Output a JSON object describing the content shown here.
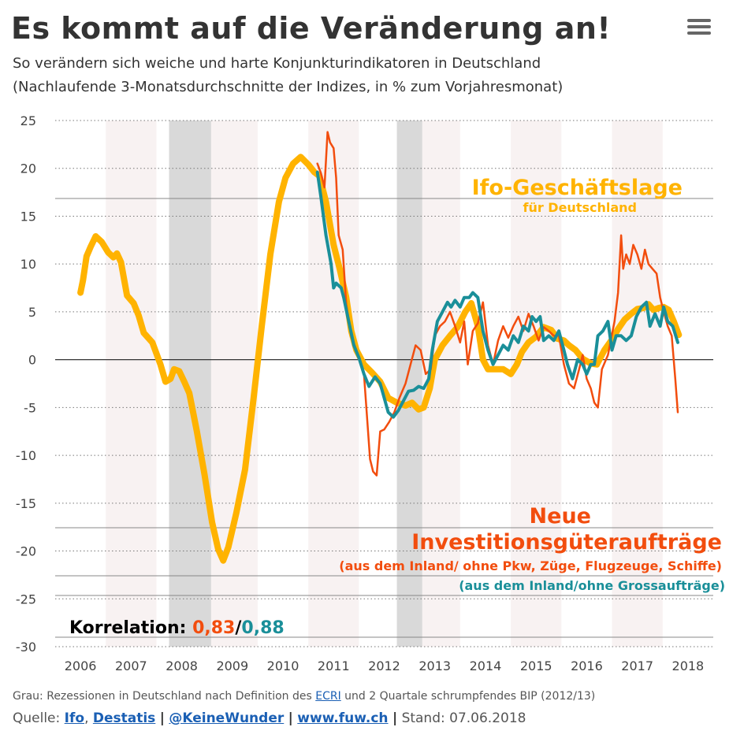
{
  "header": {
    "title": "Es kommt auf die Veränderung an!",
    "subtitle1": "So verändern sich weiche und harte Konjunkturindikatoren in Deutschland",
    "subtitle2": "(Nachlaufende 3-Monatsdurchschnitte der Indizes, in % zum Vorjahresmonat)",
    "menu_icon": "hamburger-menu-icon"
  },
  "colors": {
    "ifo": "#FFB300",
    "orders_red": "#F24D0E",
    "orders_teal": "#1A8F99",
    "recession": "#D9D9D9",
    "year_band": "#F8F2F2"
  },
  "chart_data": {
    "type": "line",
    "title": "Es kommt auf die Veränderung an!",
    "ylim": [
      -30,
      25
    ],
    "yticks": [
      25,
      20,
      15,
      10,
      5,
      0,
      -5,
      -10,
      -15,
      -20,
      -25,
      -30
    ],
    "xlim": [
      2005.5,
      2018.5
    ],
    "xticks": [
      "2006",
      "2007",
      "2008",
      "2009",
      "2010",
      "2011",
      "2012",
      "2013",
      "2014",
      "2015",
      "2016",
      "2017",
      "2018"
    ],
    "recessions": [
      [
        2007.75,
        2008.58
      ],
      [
        2012.25,
        2012.75
      ]
    ],
    "labels": {
      "ifo_title": "Ifo-Geschäftslage",
      "ifo_sub": "für Deutschland",
      "orders_title1": "Neue",
      "orders_title2": "Investitionsgüteraufträge",
      "orders_sub_red": "(aus dem Inland/ ohne Pkw, Züge, Flugzeuge, Schiffe)",
      "orders_sub_teal": "(aus dem Inland/ohne Grossaufträge)",
      "corr_label": "Korrelation: ",
      "corr_red": "0,83",
      "corr_sep": "/",
      "corr_teal": "0,88"
    },
    "series": [
      {
        "name": "Ifo-Geschäftslage für Deutschland",
        "color": "#FFB300",
        "points": [
          [
            2006.0,
            7
          ],
          [
            2006.05,
            8.3
          ],
          [
            2006.12,
            10.8
          ],
          [
            2006.2,
            11.8
          ],
          [
            2006.3,
            12.9
          ],
          [
            2006.42,
            12.3
          ],
          [
            2006.55,
            11.2
          ],
          [
            2006.65,
            10.7
          ],
          [
            2006.72,
            11.1
          ],
          [
            2006.8,
            10.2
          ],
          [
            2006.92,
            6.7
          ],
          [
            2007.05,
            5.9
          ],
          [
            2007.15,
            4.6
          ],
          [
            2007.25,
            2.8
          ],
          [
            2007.42,
            1.8
          ],
          [
            2007.58,
            -0.5
          ],
          [
            2007.68,
            -2.3
          ],
          [
            2007.78,
            -2.0
          ],
          [
            2007.85,
            -1.0
          ],
          [
            2007.95,
            -1.2
          ],
          [
            2008.05,
            -2.3
          ],
          [
            2008.15,
            -3.5
          ],
          [
            2008.3,
            -7.5
          ],
          [
            2008.45,
            -12
          ],
          [
            2008.6,
            -17
          ],
          [
            2008.72,
            -19.8
          ],
          [
            2008.82,
            -21
          ],
          [
            2008.92,
            -19.6
          ],
          [
            2009.08,
            -16
          ],
          [
            2009.25,
            -11.5
          ],
          [
            2009.42,
            -4
          ],
          [
            2009.58,
            3.5
          ],
          [
            2009.75,
            11
          ],
          [
            2009.92,
            16.5
          ],
          [
            2010.05,
            19
          ],
          [
            2010.2,
            20.5
          ],
          [
            2010.35,
            21.2
          ],
          [
            2010.5,
            20.4
          ],
          [
            2010.62,
            19.6
          ],
          [
            2010.72,
            19.2
          ],
          [
            2010.85,
            16.5
          ],
          [
            2011.0,
            12
          ],
          [
            2011.12,
            9.5
          ],
          [
            2011.25,
            6.5
          ],
          [
            2011.35,
            3
          ],
          [
            2011.45,
            1.0
          ],
          [
            2011.6,
            -0.5
          ],
          [
            2011.75,
            -1.3
          ],
          [
            2011.92,
            -2.3
          ],
          [
            2012.08,
            -4.0
          ],
          [
            2012.25,
            -4.5
          ],
          [
            2012.42,
            -4.8
          ],
          [
            2012.55,
            -4.5
          ],
          [
            2012.68,
            -5.2
          ],
          [
            2012.78,
            -5.0
          ],
          [
            2012.9,
            -3.0
          ],
          [
            2013.0,
            0
          ],
          [
            2013.15,
            1.5
          ],
          [
            2013.3,
            2.5
          ],
          [
            2013.45,
            3.4
          ],
          [
            2013.6,
            5.0
          ],
          [
            2013.72,
            5.9
          ],
          [
            2013.85,
            3.5
          ],
          [
            2013.95,
            0
          ],
          [
            2014.05,
            -1
          ],
          [
            2014.2,
            -1.0
          ],
          [
            2014.35,
            -1.0
          ],
          [
            2014.5,
            -1.5
          ],
          [
            2014.62,
            -0.5
          ],
          [
            2014.72,
            0.8
          ],
          [
            2014.85,
            1.8
          ],
          [
            2015.0,
            2.4
          ],
          [
            2015.15,
            3.4
          ],
          [
            2015.3,
            3.1
          ],
          [
            2015.42,
            2.2
          ],
          [
            2015.55,
            2.0
          ],
          [
            2015.65,
            1.5
          ],
          [
            2015.78,
            1.0
          ],
          [
            2015.92,
            0.1
          ],
          [
            2016.08,
            -0.4
          ],
          [
            2016.2,
            -0.5
          ],
          [
            2016.35,
            1.0
          ],
          [
            2016.5,
            2.1
          ],
          [
            2016.62,
            3.2
          ],
          [
            2016.75,
            4.2
          ],
          [
            2016.88,
            4.8
          ],
          [
            2017.0,
            5.3
          ],
          [
            2017.12,
            5.4
          ],
          [
            2017.22,
            5.8
          ],
          [
            2017.32,
            5.2
          ],
          [
            2017.42,
            5.4
          ],
          [
            2017.52,
            5.5
          ],
          [
            2017.62,
            5.2
          ],
          [
            2017.72,
            4.0
          ],
          [
            2017.82,
            2.6
          ]
        ]
      },
      {
        "name": "Neue Investitionsgüteraufträge (aus dem Inland/ ohne Pkw, Züge, Flugzeuge, Schiffe)",
        "color": "#F24D0E",
        "points": [
          [
            2010.68,
            20.5
          ],
          [
            2010.75,
            19.5
          ],
          [
            2010.82,
            18.0
          ],
          [
            2010.88,
            23.8
          ],
          [
            2010.93,
            22.7
          ],
          [
            2011.0,
            22.1
          ],
          [
            2011.05,
            19.0
          ],
          [
            2011.1,
            13.0
          ],
          [
            2011.18,
            11.5
          ],
          [
            2011.25,
            5.8
          ],
          [
            2011.35,
            2.4
          ],
          [
            2011.45,
            1.0
          ],
          [
            2011.6,
            -1.5
          ],
          [
            2011.72,
            -10.4
          ],
          [
            2011.78,
            -11.7
          ],
          [
            2011.85,
            -12.1
          ],
          [
            2011.92,
            -7.5
          ],
          [
            2012.0,
            -7.3
          ],
          [
            2012.1,
            -6.5
          ],
          [
            2012.2,
            -5.5
          ],
          [
            2012.3,
            -4.0
          ],
          [
            2012.42,
            -2.5
          ],
          [
            2012.52,
            -0.5
          ],
          [
            2012.62,
            1.5
          ],
          [
            2012.72,
            1.0
          ],
          [
            2012.82,
            -1.5
          ],
          [
            2012.92,
            -1.0
          ],
          [
            2013.0,
            2.5
          ],
          [
            2013.1,
            3.5
          ],
          [
            2013.2,
            4.0
          ],
          [
            2013.3,
            5.0
          ],
          [
            2013.4,
            3.5
          ],
          [
            2013.5,
            1.8
          ],
          [
            2013.58,
            4.0
          ],
          [
            2013.65,
            -0.5
          ],
          [
            2013.75,
            3.0
          ],
          [
            2013.85,
            3.8
          ],
          [
            2013.95,
            6.0
          ],
          [
            2014.05,
            1.5
          ],
          [
            2014.15,
            -0.5
          ],
          [
            2014.25,
            2.0
          ],
          [
            2014.35,
            3.5
          ],
          [
            2014.45,
            2.3
          ],
          [
            2014.55,
            3.5
          ],
          [
            2014.65,
            4.5
          ],
          [
            2014.75,
            3.0
          ],
          [
            2014.85,
            4.8
          ],
          [
            2014.95,
            3.5
          ],
          [
            2015.05,
            2.0
          ],
          [
            2015.15,
            3.4
          ],
          [
            2015.25,
            3.0
          ],
          [
            2015.35,
            2.5
          ],
          [
            2015.45,
            2.5
          ],
          [
            2015.55,
            -0.5
          ],
          [
            2015.65,
            -2.5
          ],
          [
            2015.75,
            -3.0
          ],
          [
            2015.85,
            -1.0
          ],
          [
            2015.92,
            0.5
          ],
          [
            2016.0,
            -2.0
          ],
          [
            2016.08,
            -3.0
          ],
          [
            2016.15,
            -4.5
          ],
          [
            2016.22,
            -5.0
          ],
          [
            2016.3,
            -1.0
          ],
          [
            2016.42,
            0.5
          ],
          [
            2016.55,
            4.0
          ],
          [
            2016.62,
            7.0
          ],
          [
            2016.68,
            13.0
          ],
          [
            2016.72,
            9.5
          ],
          [
            2016.78,
            11.0
          ],
          [
            2016.85,
            10.0
          ],
          [
            2016.92,
            12.0
          ],
          [
            2017.0,
            11.0
          ],
          [
            2017.08,
            9.5
          ],
          [
            2017.15,
            11.5
          ],
          [
            2017.22,
            10.0
          ],
          [
            2017.3,
            9.5
          ],
          [
            2017.38,
            9.0
          ],
          [
            2017.45,
            6.5
          ],
          [
            2017.52,
            5.0
          ],
          [
            2017.6,
            3.5
          ],
          [
            2017.68,
            2.5
          ],
          [
            2017.75,
            -2.0
          ],
          [
            2017.8,
            -5.5
          ]
        ]
      },
      {
        "name": "Neue Investitionsgüteraufträge (aus dem Inland/ohne Grossaufträge)",
        "color": "#1A8F99",
        "points": [
          [
            2010.68,
            19.6
          ],
          [
            2010.75,
            17.0
          ],
          [
            2010.85,
            13.0
          ],
          [
            2010.95,
            10.0
          ],
          [
            2011.0,
            7.5
          ],
          [
            2011.05,
            8.0
          ],
          [
            2011.15,
            7.5
          ],
          [
            2011.2,
            6.5
          ],
          [
            2011.3,
            4.0
          ],
          [
            2011.4,
            1.5
          ],
          [
            2011.5,
            0.2
          ],
          [
            2011.6,
            -1.5
          ],
          [
            2011.7,
            -2.8
          ],
          [
            2011.82,
            -1.8
          ],
          [
            2011.92,
            -2.5
          ],
          [
            2012.0,
            -4.0
          ],
          [
            2012.08,
            -5.5
          ],
          [
            2012.18,
            -6.0
          ],
          [
            2012.28,
            -5.3
          ],
          [
            2012.38,
            -4.3
          ],
          [
            2012.48,
            -3.3
          ],
          [
            2012.58,
            -3.2
          ],
          [
            2012.68,
            -2.8
          ],
          [
            2012.78,
            -3.0
          ],
          [
            2012.88,
            -2.0
          ],
          [
            2012.95,
            1.0
          ],
          [
            2013.05,
            4.0
          ],
          [
            2013.15,
            5.0
          ],
          [
            2013.25,
            6.0
          ],
          [
            2013.32,
            5.5
          ],
          [
            2013.4,
            6.2
          ],
          [
            2013.5,
            5.5
          ],
          [
            2013.58,
            6.5
          ],
          [
            2013.68,
            6.5
          ],
          [
            2013.75,
            7.0
          ],
          [
            2013.85,
            6.5
          ],
          [
            2013.95,
            3.0
          ],
          [
            2014.05,
            1.0
          ],
          [
            2014.15,
            -0.5
          ],
          [
            2014.25,
            0.5
          ],
          [
            2014.35,
            1.5
          ],
          [
            2014.45,
            1.0
          ],
          [
            2014.55,
            2.5
          ],
          [
            2014.65,
            1.8
          ],
          [
            2014.75,
            3.5
          ],
          [
            2014.85,
            3.0
          ],
          [
            2014.92,
            4.5
          ],
          [
            2015.0,
            4.0
          ],
          [
            2015.08,
            4.5
          ],
          [
            2015.15,
            2.0
          ],
          [
            2015.25,
            2.5
          ],
          [
            2015.35,
            2.0
          ],
          [
            2015.45,
            3.0
          ],
          [
            2015.55,
            1.0
          ],
          [
            2015.62,
            -0.5
          ],
          [
            2015.72,
            -2.0
          ],
          [
            2015.82,
            0
          ],
          [
            2015.92,
            -0.5
          ],
          [
            2016.0,
            -1.5
          ],
          [
            2016.08,
            -0.5
          ],
          [
            2016.15,
            -0.5
          ],
          [
            2016.22,
            2.5
          ],
          [
            2016.32,
            3.0
          ],
          [
            2016.42,
            4.0
          ],
          [
            2016.5,
            1.0
          ],
          [
            2016.58,
            2.5
          ],
          [
            2016.68,
            2.5
          ],
          [
            2016.78,
            2.0
          ],
          [
            2016.88,
            2.5
          ],
          [
            2016.98,
            4.5
          ],
          [
            2017.08,
            5.5
          ],
          [
            2017.18,
            6.0
          ],
          [
            2017.25,
            3.5
          ],
          [
            2017.35,
            4.8
          ],
          [
            2017.45,
            3.5
          ],
          [
            2017.52,
            5.5
          ],
          [
            2017.6,
            4.0
          ],
          [
            2017.7,
            3.5
          ],
          [
            2017.8,
            1.8
          ]
        ]
      }
    ]
  },
  "footer": {
    "note_pre": "Grau: Rezessionen in Deutschland nach Definition des ",
    "note_link": "ECRI",
    "note_post": " und 2 Quartale schrumpfendes BIP (2012/13)",
    "source_label": "Quelle: ",
    "src_ifo": "Ifo",
    "src_comma": ", ",
    "src_destatis": "Destatis",
    "separator": "|",
    "src_twitter": "@KeineWunder",
    "src_fuw": "www.fuw.ch",
    "stand": "Stand: 07.06.2018"
  }
}
